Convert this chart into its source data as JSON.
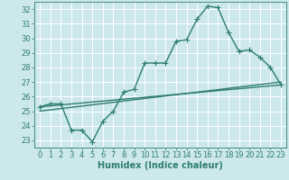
{
  "xlabel": "Humidex (Indice chaleur)",
  "background_color": "#cce8ed",
  "line_color": "#2e7d6e",
  "grid_color": "#ffffff",
  "xlim": [
    -0.5,
    23.5
  ],
  "ylim": [
    22.5,
    32.5
  ],
  "xticks": [
    0,
    1,
    2,
    3,
    4,
    5,
    6,
    7,
    8,
    9,
    10,
    11,
    12,
    13,
    14,
    15,
    16,
    17,
    18,
    19,
    20,
    21,
    22,
    23
  ],
  "yticks": [
    23,
    24,
    25,
    26,
    27,
    28,
    29,
    30,
    31,
    32
  ],
  "curve1_x": [
    0,
    1,
    2,
    3,
    4,
    5,
    6,
    7,
    8,
    9,
    10,
    11,
    12,
    13,
    14,
    15,
    16,
    17,
    18,
    19,
    20,
    21,
    22,
    23
  ],
  "curve1_y": [
    25.3,
    25.5,
    25.5,
    23.7,
    23.7,
    22.9,
    24.3,
    25.0,
    26.3,
    26.5,
    28.3,
    28.3,
    28.3,
    29.8,
    29.9,
    31.3,
    32.2,
    32.1,
    30.4,
    29.1,
    29.2,
    28.7,
    28.0,
    26.8
  ],
  "curve2_x": [
    0,
    23
  ],
  "curve2_y": [
    25.3,
    26.8
  ],
  "curve3_x": [
    0,
    23
  ],
  "curve3_y": [
    25.0,
    27.0
  ],
  "marker": "+",
  "marker_size": 4,
  "linewidth": 1.0,
  "label_fontsize": 7,
  "tick_fontsize": 6
}
